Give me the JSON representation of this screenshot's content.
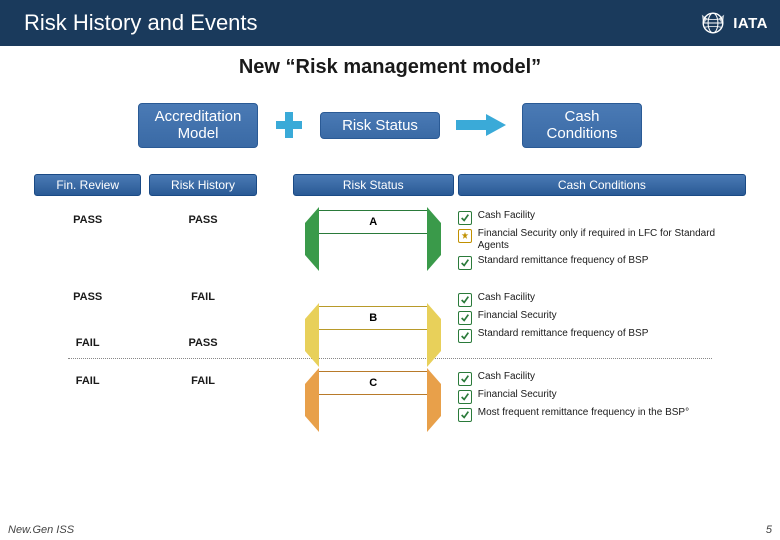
{
  "header": {
    "title": "Risk History and Events",
    "logo_text": "IATA"
  },
  "subtitle": "New “Risk management model”",
  "flow": {
    "box1": "Accreditation Model",
    "box2": "Risk Status",
    "box3": "Cash Conditions"
  },
  "columns": {
    "c1": "Fin. Review",
    "c2": "Risk History",
    "c3": "Risk Status",
    "c4": "Cash Conditions"
  },
  "rows": [
    {
      "fin": "PASS",
      "hist": "PASS",
      "status_label": "A",
      "status_color": "green",
      "conditions": [
        {
          "mark": "check",
          "text": "Cash Facility"
        },
        {
          "mark": "star",
          "text": "Financial Security only if required in LFC for Standard Agents"
        },
        {
          "mark": "check",
          "text": "Standard remittance frequency of BSP"
        }
      ]
    },
    {
      "fin": "PASS",
      "hist": "FAIL",
      "status_label": "B",
      "status_color": "yellow",
      "alt": {
        "fin": "FAIL",
        "hist": "PASS"
      },
      "conditions": [
        {
          "mark": "check",
          "text": "Cash Facility"
        },
        {
          "mark": "check",
          "text": "Financial Security"
        },
        {
          "mark": "check",
          "text": "Standard remittance frequency of BSP"
        }
      ]
    },
    {
      "fin": "FAIL",
      "hist": "FAIL",
      "status_label": "C",
      "status_color": "orange",
      "conditions": [
        {
          "mark": "check",
          "text": "Cash Facility"
        },
        {
          "mark": "check",
          "text": "Financial Security"
        },
        {
          "mark": "check",
          "text": "Most frequent remittance frequency in the BSP°"
        }
      ]
    }
  ],
  "footer": {
    "left": "New.Gen ISS",
    "page": "5"
  },
  "colors": {
    "header_bg": "#1a3a5c",
    "box_blue": "#3a6aa5",
    "arrow": "#3aaad8",
    "green": "#3a9a4a",
    "yellow": "#e8d05a",
    "orange": "#e8a04a"
  }
}
